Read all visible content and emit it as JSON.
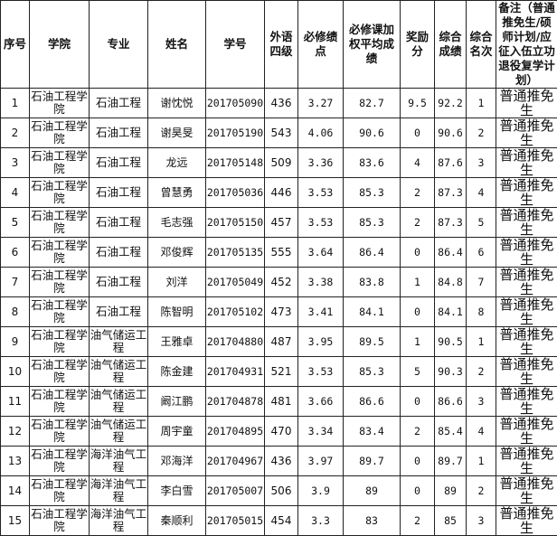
{
  "headers": [
    "序号",
    "学院",
    "专业",
    "姓名",
    "学号",
    "外语四级",
    "必修绩点",
    "必修课加权平均成绩",
    "奖励分",
    "综合成绩",
    "综合名次",
    "备注（普通推免生/硕师计划/应征入伍立功退役复学计划）"
  ],
  "rows": [
    [
      "1",
      "石油工程学院",
      "石油工程",
      "谢忱悦",
      "201705090",
      "436",
      "3.27",
      "82.7",
      "9.5",
      "92.2",
      "1",
      "普通推免生"
    ],
    [
      "2",
      "石油工程学院",
      "石油工程",
      "谢昊旻",
      "201705190",
      "543",
      "4.06",
      "90.6",
      "0",
      "90.6",
      "2",
      "普通推免生"
    ],
    [
      "3",
      "石油工程学院",
      "石油工程",
      "龙远",
      "201705148",
      "509",
      "3.36",
      "83.6",
      "4",
      "87.6",
      "3",
      "普通推免生"
    ],
    [
      "4",
      "石油工程学院",
      "石油工程",
      "曾慧勇",
      "201705036",
      "446",
      "3.53",
      "85.3",
      "2",
      "87.3",
      "4",
      "普通推免生"
    ],
    [
      "5",
      "石油工程学院",
      "石油工程",
      "毛志强",
      "201705150",
      "457",
      "3.53",
      "85.3",
      "2",
      "87.3",
      "5",
      "普通推免生"
    ],
    [
      "6",
      "石油工程学院",
      "石油工程",
      "邓俊辉",
      "201705135",
      "555",
      "3.64",
      "86.4",
      "0",
      "86.4",
      "6",
      "普通推免生"
    ],
    [
      "7",
      "石油工程学院",
      "石油工程",
      "刘洋",
      "201705049",
      "452",
      "3.38",
      "83.8",
      "1",
      "84.8",
      "7",
      "普通推免生"
    ],
    [
      "8",
      "石油工程学院",
      "石油工程",
      "陈智明",
      "201705102",
      "473",
      "3.41",
      "84.1",
      "0",
      "84.1",
      "8",
      "普通推免生"
    ],
    [
      "9",
      "石油工程学院",
      "油气储运工程",
      "王雅卓",
      "201704880",
      "487",
      "3.95",
      "89.5",
      "1",
      "90.5",
      "1",
      "普通推免生"
    ],
    [
      "10",
      "石油工程学院",
      "油气储运工程",
      "陈金建",
      "201704931",
      "521",
      "3.53",
      "85.3",
      "5",
      "90.3",
      "2",
      "普通推免生"
    ],
    [
      "11",
      "石油工程学院",
      "油气储运工程",
      "阚江鹏",
      "201704878",
      "481",
      "3.66",
      "86.6",
      "0",
      "86.6",
      "3",
      "普通推免生"
    ],
    [
      "12",
      "石油工程学院",
      "油气储运工程",
      "周宇童",
      "201704895",
      "470",
      "3.34",
      "83.4",
      "2",
      "85.4",
      "4",
      "普通推免生"
    ],
    [
      "13",
      "石油工程学院",
      "海洋油气工程",
      "邓海洋",
      "201704967",
      "436",
      "3.97",
      "89.7",
      "0",
      "89.7",
      "1",
      "普通推免生"
    ],
    [
      "14",
      "石油工程学院",
      "海洋油气工程",
      "李白雪",
      "201705007",
      "506",
      "3.9",
      "89",
      "0",
      "89",
      "2",
      "普通推免生"
    ],
    [
      "15",
      "石油工程学院",
      "海洋油气工程",
      "秦顺利",
      "201705015",
      "454",
      "3.3",
      "83",
      "2",
      "85",
      "3",
      "普通推免生"
    ]
  ]
}
